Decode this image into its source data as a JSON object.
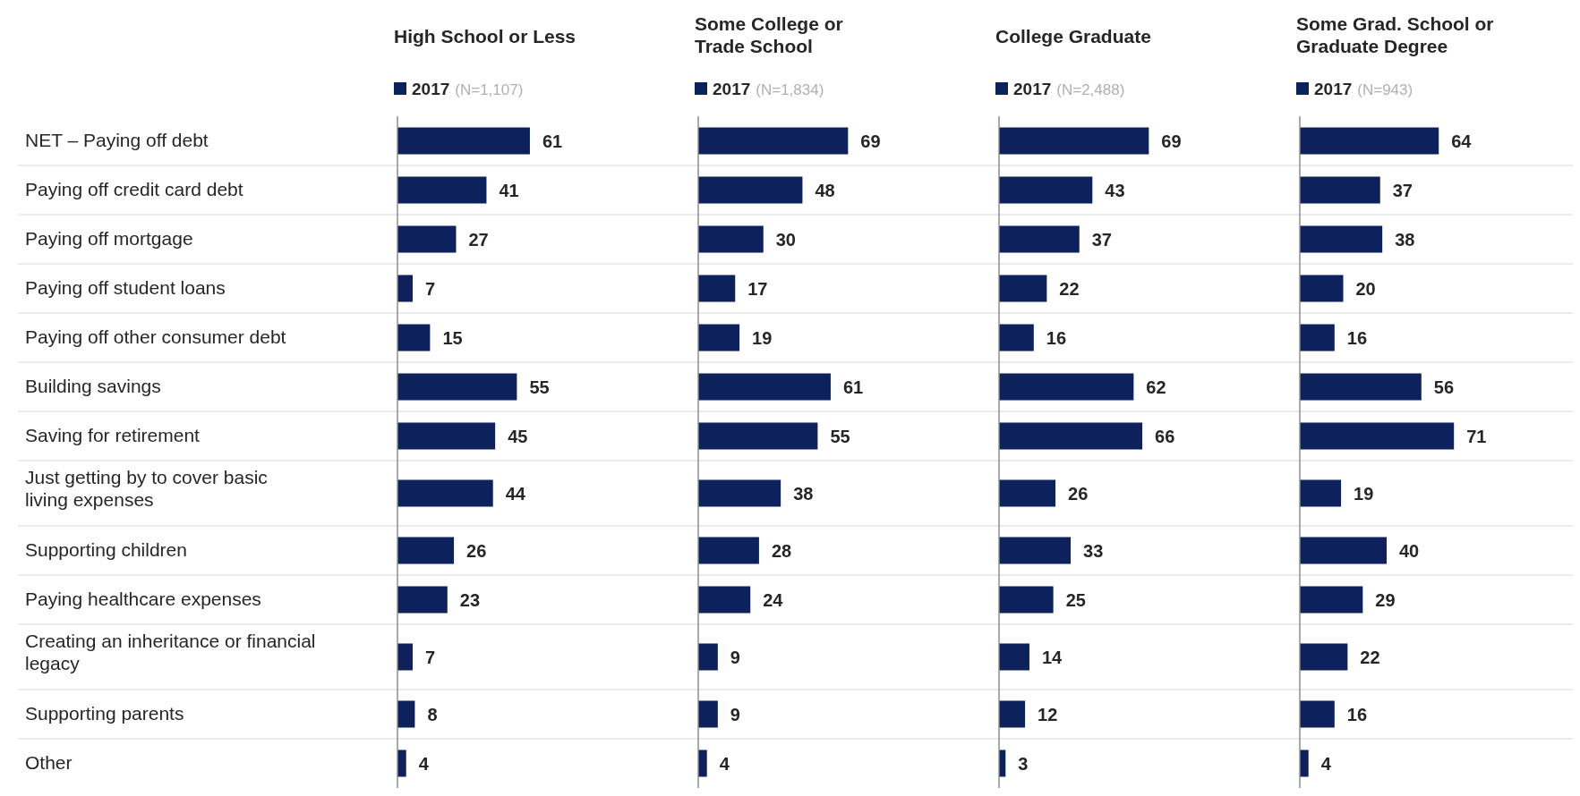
{
  "chart_data": [
    {
      "type": "bar",
      "orientation": "horizontal",
      "title": "High School or Less",
      "categories": [
        "NET – Paying off debt",
        "Paying off credit card debt",
        "Paying off mortgage",
        "Paying off student loans",
        "Paying off other consumer debt",
        "Building savings",
        "Saving for retirement",
        "Just getting by to cover basic living expenses",
        "Supporting children",
        "Paying healthcare expenses",
        "Creating an inheritance or financial legacy",
        "Supporting parents",
        "Other"
      ],
      "series": [
        {
          "name": "2017",
          "color": "#0d215c",
          "values": [
            61,
            41,
            27,
            7,
            15,
            55,
            45,
            44,
            26,
            23,
            7,
            8,
            4
          ]
        }
      ],
      "annotations": [
        "(N=1,107)"
      ],
      "data_labels": true,
      "legend": "top",
      "grid": "y",
      "tick_labels": "y"
    },
    {
      "type": "bar",
      "orientation": "horizontal",
      "title": "Some College or Trade School",
      "categories": [
        null,
        null,
        null,
        null,
        null,
        null,
        null,
        null,
        null,
        null,
        null,
        null,
        null
      ],
      "series": [
        {
          "name": "2017",
          "color": "#0d215c",
          "values": [
            69,
            48,
            30,
            17,
            19,
            61,
            55,
            38,
            28,
            24,
            9,
            9,
            4
          ]
        }
      ],
      "annotations": [
        "(N=1,834)"
      ],
      "data_labels": true,
      "legend": "top",
      "grid": "y",
      "tick_labels": false
    },
    {
      "type": "bar",
      "orientation": "horizontal",
      "title": "College Graduate",
      "categories": [
        null,
        null,
        null,
        null,
        null,
        null,
        null,
        null,
        null,
        null,
        null,
        null,
        null
      ],
      "series": [
        {
          "name": "2017",
          "color": "#0d215c",
          "values": [
            69,
            43,
            37,
            22,
            16,
            62,
            66,
            26,
            33,
            25,
            14,
            12,
            3
          ]
        }
      ],
      "annotations": [
        "(N=2,488)"
      ],
      "data_labels": true,
      "legend": "top",
      "grid": "y",
      "tick_labels": false
    },
    {
      "type": "bar",
      "orientation": "horizontal",
      "title": "Some Grad. School or Graduate Degree",
      "categories": [
        null,
        null,
        null,
        null,
        null,
        null,
        null,
        null,
        null,
        null,
        null,
        null,
        null
      ],
      "series": [
        {
          "name": "2017",
          "color": "#0d215c",
          "values": [
            64,
            37,
            38,
            20,
            16,
            56,
            71,
            19,
            40,
            29,
            22,
            16,
            4
          ]
        }
      ],
      "annotations": [
        "(N=943)"
      ],
      "data_labels": true,
      "legend": "top",
      "grid": "y",
      "tick_labels": false
    }
  ]
}
